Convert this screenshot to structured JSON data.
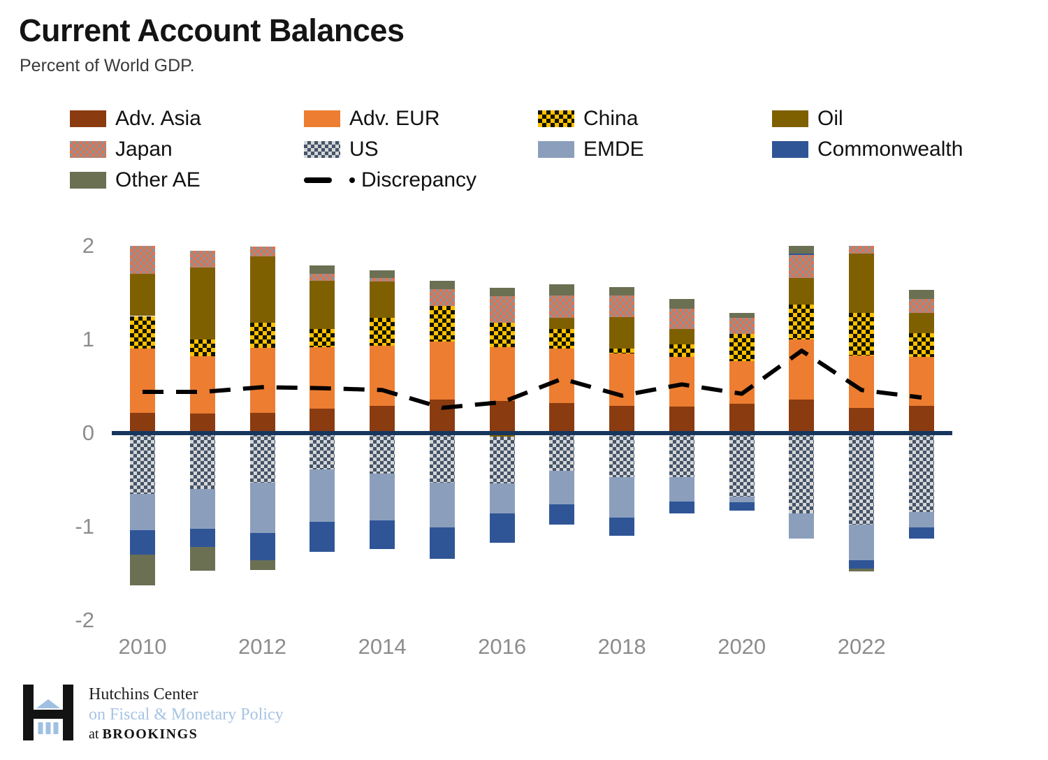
{
  "title": "Current Account Balances",
  "subtitle": "Percent of World GDP.",
  "colors": {
    "title_text": "#141414",
    "subtitle_text": "#3a3a3a",
    "axis_text": "#8c8c8c",
    "zero_line": "#17365d",
    "discrepancy_line": "#000000",
    "logo_blue": "#9fc0e2"
  },
  "legend_order": [
    "adv_asia",
    "adv_eur",
    "china",
    "oil",
    "japan",
    "us",
    "emde",
    "commonwealth",
    "other_ae",
    "discrepancy"
  ],
  "chart_data": {
    "type": "bar",
    "stacked": true,
    "x": [
      2010,
      2011,
      2012,
      2013,
      2014,
      2015,
      2016,
      2017,
      2018,
      2019,
      2020,
      2021,
      2022,
      2023
    ],
    "xticks": [
      2010,
      2012,
      2014,
      2016,
      2018,
      2020,
      2022
    ],
    "yticks": [
      2,
      1,
      0,
      -1,
      -2
    ],
    "ylim": [
      -2,
      2
    ],
    "grid": false,
    "legend_position": "top",
    "series": [
      {
        "key": "adv_asia",
        "name": "Adv. Asia",
        "fill": {
          "type": "solid",
          "color": "#8a3b10"
        },
        "values": [
          0.22,
          0.21,
          0.22,
          0.26,
          0.29,
          0.36,
          0.34,
          0.32,
          0.29,
          0.28,
          0.31,
          0.36,
          0.27,
          0.29
        ]
      },
      {
        "key": "adv_eur",
        "name": "Adv. EUR",
        "fill": {
          "type": "solid",
          "color": "#ed7d31"
        },
        "values": [
          0.68,
          0.61,
          0.69,
          0.66,
          0.64,
          0.62,
          0.58,
          0.58,
          0.56,
          0.53,
          0.46,
          0.64,
          0.56,
          0.52
        ]
      },
      {
        "key": "china",
        "name": "China",
        "fill": {
          "type": "checker",
          "color1": "#ffc000",
          "color2": "#141400",
          "size": 12
        },
        "values": [
          0.35,
          0.18,
          0.27,
          0.19,
          0.3,
          0.38,
          0.26,
          0.21,
          0.05,
          0.14,
          0.29,
          0.37,
          0.45,
          0.26
        ]
      },
      {
        "key": "oil",
        "name": "Oil",
        "fill": {
          "type": "solid",
          "color": "#7f6000"
        },
        "values": [
          0.45,
          0.77,
          0.71,
          0.52,
          0.39,
          0.0,
          -0.04,
          0.12,
          0.34,
          0.16,
          0.0,
          0.29,
          0.64,
          0.21
        ]
      },
      {
        "key": "japan",
        "name": "Japan",
        "fill": {
          "type": "checker",
          "color1": "#e3714e",
          "color2": "#919191",
          "size": 9
        },
        "values": [
          0.3,
          0.18,
          0.1,
          0.07,
          0.04,
          0.18,
          0.28,
          0.24,
          0.23,
          0.22,
          0.17,
          0.24,
          0.08,
          0.15
        ]
      },
      {
        "key": "us",
        "name": "US",
        "fill": {
          "type": "checker",
          "color1": "#44546a",
          "color2": "#d6d6d6",
          "size": 10
        },
        "values": [
          -0.65,
          -0.6,
          -0.53,
          -0.39,
          -0.43,
          -0.53,
          -0.5,
          -0.4,
          -0.47,
          -0.47,
          -0.68,
          -0.86,
          -0.98,
          -0.84
        ]
      },
      {
        "key": "emde",
        "name": "EMDE",
        "fill": {
          "type": "solid",
          "color": "#8b9fbc"
        },
        "values": [
          -0.39,
          -0.42,
          -0.54,
          -0.56,
          -0.5,
          -0.48,
          -0.32,
          -0.36,
          -0.43,
          -0.26,
          -0.06,
          -0.27,
          -0.38,
          -0.17
        ]
      },
      {
        "key": "commonwealth",
        "name": "Commonwealth",
        "fill": {
          "type": "solid",
          "color": "#2f5597"
        },
        "values": [
          -0.26,
          -0.2,
          -0.29,
          -0.32,
          -0.31,
          -0.33,
          -0.31,
          -0.22,
          -0.2,
          -0.13,
          -0.09,
          0.02,
          -0.09,
          -0.12
        ]
      },
      {
        "key": "other_ae",
        "name": "Other AE",
        "fill": {
          "type": "solid",
          "color": "#6b7053"
        },
        "values": [
          -0.33,
          -0.25,
          -0.1,
          0.09,
          0.08,
          0.09,
          0.09,
          0.12,
          0.09,
          0.1,
          0.05,
          0.08,
          -0.03,
          0.1
        ]
      }
    ],
    "stack_order_positive": [
      "adv_asia",
      "adv_eur",
      "china",
      "oil",
      "japan",
      "commonwealth",
      "other_ae"
    ],
    "stack_order_negative": [
      "oil",
      "us",
      "emde",
      "commonwealth",
      "other_ae"
    ],
    "line_series": {
      "key": "discrepancy",
      "name": "Discrepancy",
      "color": "#000000",
      "style": "dashed",
      "values": [
        0.44,
        0.44,
        0.49,
        0.48,
        0.46,
        0.27,
        0.33,
        0.58,
        0.4,
        0.52,
        0.42,
        0.88,
        0.46,
        0.38
      ]
    }
  },
  "footer": {
    "line1": "Hutchins Center",
    "line2": "on Fiscal & Monetary Policy",
    "line3_prefix": "at",
    "line3_name": "BROOKINGS"
  }
}
